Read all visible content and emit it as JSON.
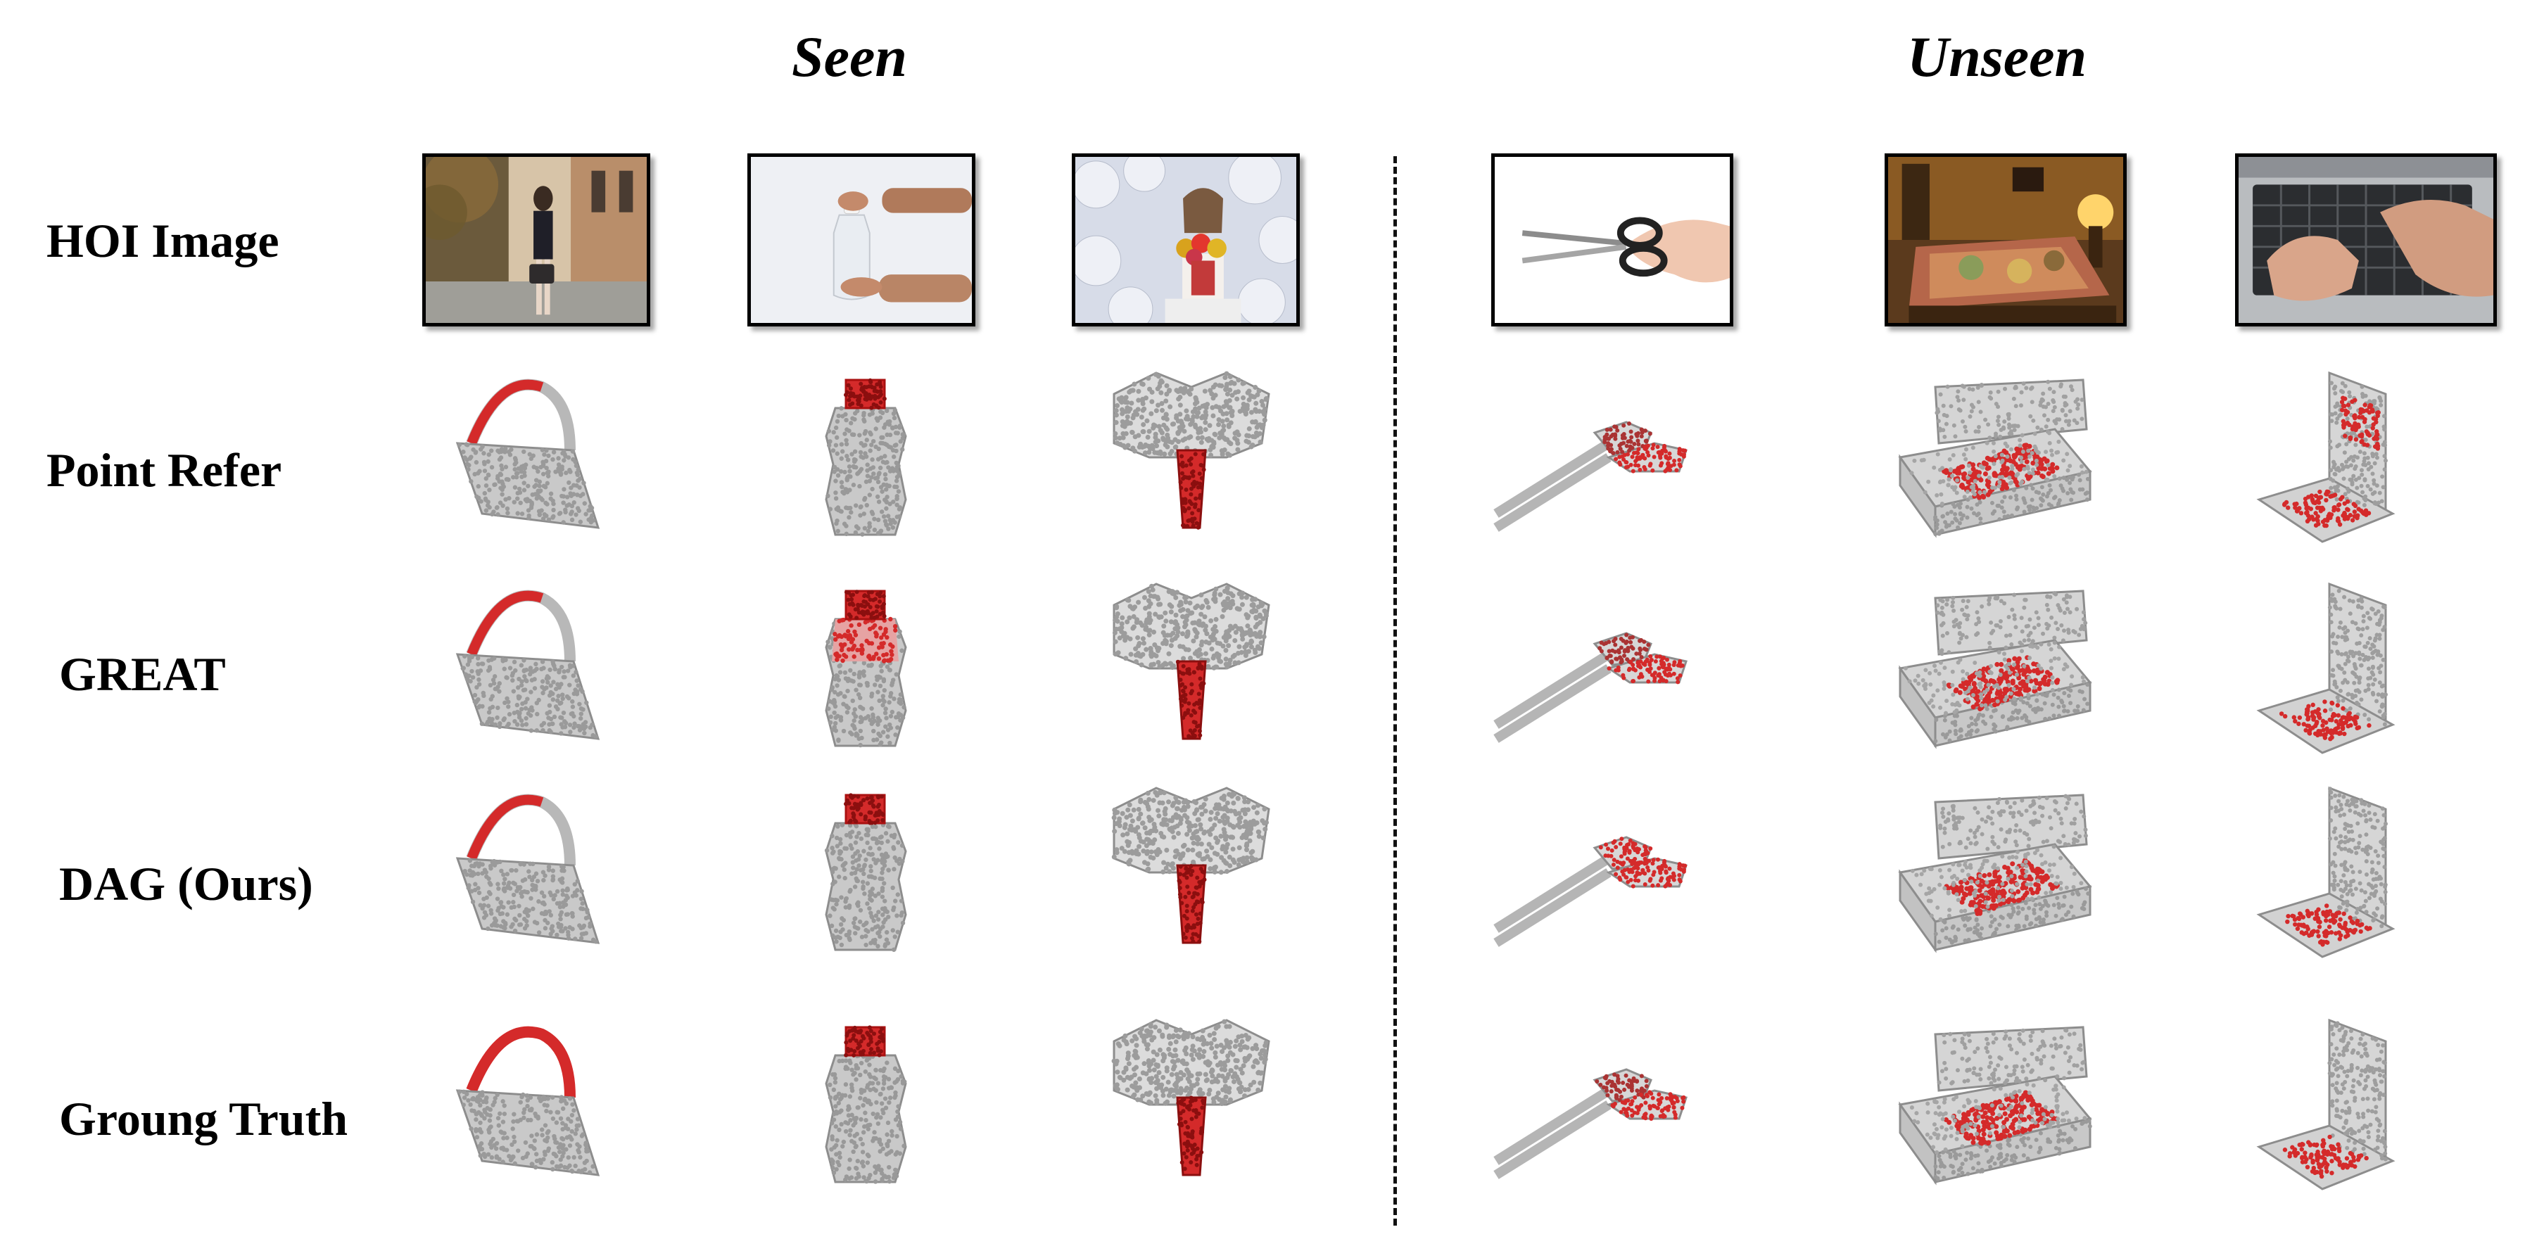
{
  "headers": {
    "seen": "Seen",
    "unseen": "Unseen"
  },
  "rows": [
    {
      "label": "HOI Image"
    },
    {
      "label": "Point Refer"
    },
    {
      "label": "GREAT"
    },
    {
      "label": "DAG (Ours)"
    },
    {
      "label": "Groung Truth"
    }
  ],
  "objects": [
    "bag",
    "bottle",
    "vase",
    "scissors",
    "bed",
    "laptop"
  ],
  "colors": {
    "point_base": "#c9c9c9",
    "point_edge": "#8d8d8d",
    "affordance": "#d42a2a",
    "divider": "#111111"
  }
}
